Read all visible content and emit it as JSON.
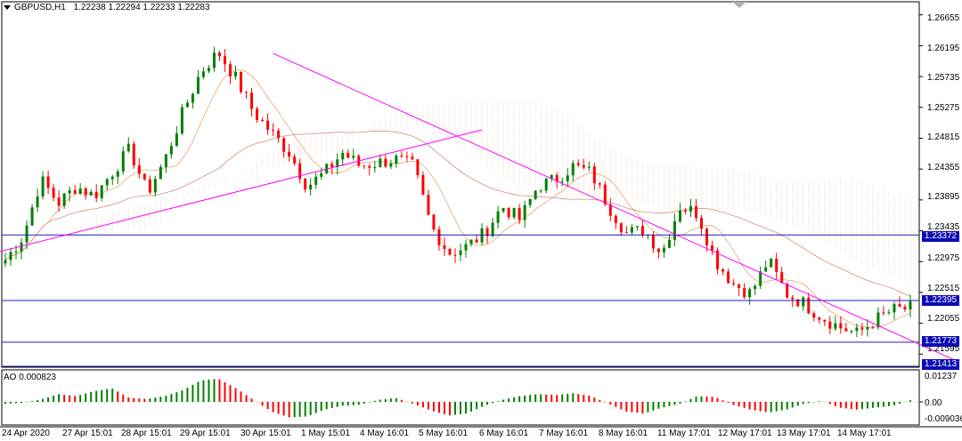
{
  "header": {
    "dropdown_icon": "triangle-down-icon",
    "symbol": "GBPUSD,H1",
    "ohlc": "1.22238 1.22294 1.22233 1.22283"
  },
  "indicator": {
    "label": "AO 0.000823"
  },
  "price_axis": [
    "1.26655",
    "1.26195",
    "1.25735",
    "1.25275",
    "1.24815",
    "1.24355",
    "1.23895",
    "1.23435",
    "1.22975",
    "1.22515",
    "1.22055",
    "1.21595"
  ],
  "ao_axis": [
    "0.01237",
    "0.00",
    "-0.009036"
  ],
  "levels": [
    "1.23372",
    "1.22395",
    "1.21773",
    "1.21413"
  ],
  "current_price_hidden": "1.22283",
  "time_axis": [
    "24 Apr 2020",
    "27 Apr 15:01",
    "28 Apr 15:01",
    "29 Apr 15:01",
    "30 Apr 15:01",
    "1 May 15:01",
    "4 May 16:01",
    "5 May 16:01",
    "6 May 16:01",
    "7 May 16:01",
    "8 May 16:01",
    "11 May 17:01",
    "12 May 17:01",
    "13 May 17:01",
    "14 May 17:01"
  ],
  "colors": {
    "bull": "#008000",
    "bear": "#ff0000",
    "level_line": "#1e1eb4",
    "trendline": "#ff00ff",
    "cloud": "#f5b080",
    "ma": "#e08040"
  },
  "chart_data": {
    "type": "candlestick",
    "symbol": "GBPUSD",
    "timeframe": "H1",
    "ylim": [
      1.214,
      1.2685
    ],
    "close_path": [
      1.23,
      1.2335,
      1.242,
      1.2385,
      1.241,
      1.2395,
      1.243,
      1.2465,
      1.24,
      1.245,
      1.252,
      1.258,
      1.261,
      1.257,
      1.252,
      1.249,
      1.246,
      1.241,
      1.243,
      1.246,
      1.244,
      1.2445,
      1.245,
      1.244,
      1.235,
      1.231,
      1.232,
      1.234,
      1.238,
      1.236,
      1.241,
      1.242,
      1.244,
      1.243,
      1.238,
      1.234,
      1.2345,
      1.231,
      1.238,
      1.237,
      1.23,
      1.2265,
      1.225,
      1.23,
      1.225,
      1.2235,
      1.2215,
      1.22,
      1.219,
      1.221,
      1.2225,
      1.2228
    ],
    "ao_values": [
      -0.001,
      -0.0005,
      0.0012,
      0.004,
      0.003,
      0.0055,
      0.007,
      0.002,
      0.0015,
      0.003,
      0.006,
      0.011,
      0.012,
      0.007,
      0.001,
      -0.005,
      -0.008,
      -0.0075,
      -0.004,
      -0.002,
      -0.0015,
      0.001,
      0.002,
      -0.001,
      -0.0045,
      -0.007,
      -0.006,
      -0.002,
      0.001,
      0.003,
      0.004,
      0.0035,
      0.0045,
      0.003,
      -0.001,
      -0.005,
      -0.006,
      -0.003,
      -0.001,
      0.003,
      0.0025,
      -0.0015,
      -0.004,
      -0.0055,
      -0.004,
      -0.001,
      0.0005,
      -0.003,
      -0.004,
      -0.003,
      -0.002,
      0.0008
    ]
  }
}
